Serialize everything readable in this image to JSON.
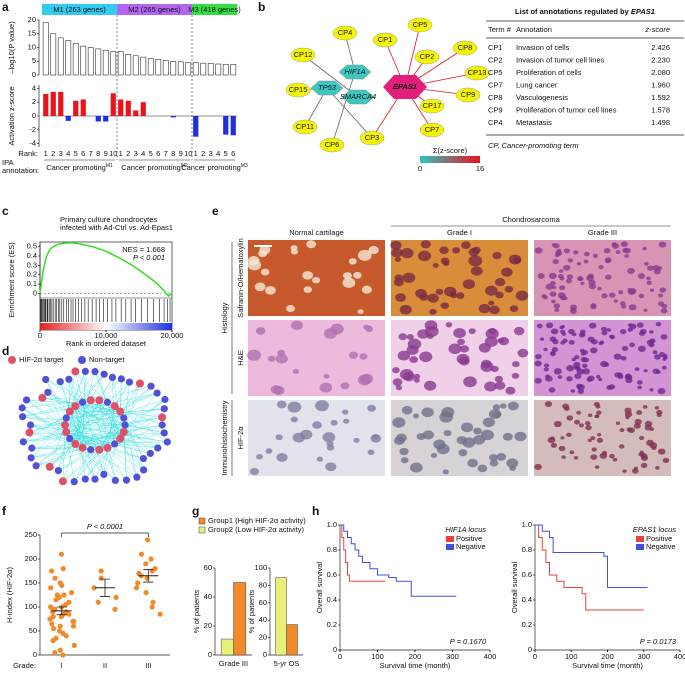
{
  "panel_labels": [
    "a",
    "b",
    "c",
    "d",
    "e",
    "f",
    "g",
    "h"
  ],
  "chart_data": [
    {
      "type": "modulebar",
      "ylabel": "–log10(P value)",
      "ylim": [
        0,
        20
      ],
      "yticks": [
        0,
        5,
        10,
        15,
        20
      ],
      "zlabel": "Activation z-score",
      "zlim": [
        -4.5,
        4.5
      ],
      "zticks": [
        -4,
        -2,
        0,
        2,
        4
      ],
      "z_colors": {
        "positive": "#e8141c",
        "negative": "#1f2ee0"
      },
      "rank_label": "Rank:",
      "annotation_label": [
        "IPA",
        "annotation:"
      ],
      "modules": [
        {
          "name": "M1 (263 genes)",
          "color": "#33ccee",
          "annotation": "Cancer promoting",
          "superscript": "M1",
          "categories": [
            "1",
            "2",
            "3",
            "4",
            "5",
            "6",
            "7",
            "8",
            "9",
            "10"
          ],
          "values": [
            19,
            15,
            13.5,
            12.5,
            11.5,
            10.5,
            10,
            9.5,
            9,
            8.5
          ],
          "z_values": [
            3.2,
            3.5,
            3.5,
            -0.7,
            2.2,
            2.4,
            0,
            -0.8,
            -0.8,
            3.3
          ]
        },
        {
          "name": "M2 (265 genes)",
          "color": "#b266ee",
          "annotation": "Cancer promoting",
          "superscript": "M2",
          "categories": [
            "1",
            "2",
            "3",
            "4",
            "5",
            "6",
            "7",
            "8",
            "9",
            "10"
          ],
          "values": [
            8.5,
            7.5,
            7,
            6.5,
            6,
            5.7,
            5.3,
            5,
            4.8,
            4.5
          ],
          "z_values": [
            2.4,
            2.2,
            0.8,
            2.0,
            0,
            0,
            0,
            -0.2,
            0,
            0
          ]
        },
        {
          "name": "M3 (418 genes)",
          "color": "#33dd44",
          "annotation": "Cancer promoting",
          "superscript": "M3",
          "categories": [
            "1",
            "2",
            "3",
            "4",
            "5",
            "6"
          ],
          "values": [
            4.5,
            4.3,
            4.2,
            4,
            3.9,
            3.8
          ],
          "z_values": [
            -3,
            0,
            0,
            0,
            -2.7,
            -2.8
          ]
        }
      ]
    },
    {
      "type": "gsea",
      "title_lines": [
        "Primary culture chondrocytes",
        "infected with Ad-Ctrl vs. Ad-Epas1"
      ],
      "annotations": [
        "NES = 1.668",
        "P < 0.001"
      ],
      "ylabel": "Enrichment score (ES)",
      "xlabel": "Rank in ordered dataset",
      "color": "#33dd22",
      "xlim": [
        0,
        20000
      ],
      "xticks": [
        0,
        {
          "value": 10000,
          "label": "10,000"
        },
        {
          "value": 20000,
          "label": "20,000"
        }
      ],
      "ylim": [
        -0.05,
        0.55
      ],
      "yticks": [
        0,
        0.1,
        0.2,
        0.3,
        0.4,
        0.5
      ],
      "x": [
        0,
        500,
        1000,
        1500,
        2000,
        3000,
        4000,
        5000,
        6000,
        8000,
        10000,
        12000,
        14000,
        16000,
        17500,
        18500,
        19500,
        20000
      ],
      "values": [
        0,
        0.25,
        0.4,
        0.47,
        0.5,
        0.53,
        0.54,
        0.54,
        0.53,
        0.5,
        0.45,
        0.38,
        0.3,
        0.2,
        0.12,
        0.05,
        -0.03,
        0
      ],
      "hits": [
        50,
        150,
        250,
        400,
        500,
        650,
        800,
        900,
        1100,
        1200,
        1400,
        1600,
        1800,
        2000,
        2300,
        2500,
        2800,
        3000,
        3300,
        3600,
        4000,
        4300,
        4700,
        5000,
        5400,
        5800,
        6300,
        6800,
        7300,
        7900,
        8500,
        9000,
        9600,
        10200,
        10900,
        11500,
        12300,
        13000,
        13800,
        14500,
        15400,
        16300,
        17200,
        18100,
        18800,
        19300,
        19700
      ]
    },
    {
      "type": "dotplot",
      "ylabel": "H-index (HIF-2α)",
      "xlabel": "Grade:",
      "categories": [
        "I",
        "II",
        "III"
      ],
      "annotation": "P < 0.0001",
      "color": "#f08a2a",
      "ylim": [
        0,
        250
      ],
      "yticks": [
        0,
        50,
        100,
        150,
        200,
        250
      ],
      "values": [
        [
          210,
          180,
          175,
          160,
          150,
          145,
          140,
          130,
          125,
          120,
          115,
          110,
          105,
          100,
          100,
          95,
          90,
          90,
          85,
          80,
          80,
          75,
          70,
          70,
          65,
          60,
          60,
          55,
          50,
          45,
          40,
          35,
          30,
          20,
          10,
          5,
          0,
          125,
          95,
          85
        ],
        [
          175,
          160,
          140,
          120,
          110,
          95
        ],
        [
          240,
          210,
          200,
          190,
          180,
          175,
          170,
          165,
          160,
          150,
          140,
          130,
          110,
          100,
          85
        ]
      ],
      "means": [
        92,
        140,
        165
      ],
      "errors": [
        8,
        18,
        13
      ]
    },
    {
      "type": "groupbar",
      "ylabel": "% of patients",
      "categories": [
        "Grade III"
      ],
      "ylim": [
        0,
        60
      ],
      "yticks": [
        0,
        20,
        40,
        60
      ],
      "series": [
        {
          "name": "Group1 (High HIF-2α activity)",
          "color": "#f08a2a",
          "values": [
            50
          ]
        },
        {
          "name": "Group2 (Low HIF-2α activity)",
          "color": "#e8f07a",
          "values": [
            11
          ]
        }
      ]
    },
    {
      "type": "groupbar",
      "ylabel": "% of patients",
      "categories": [
        "5-yr OS"
      ],
      "ylim": [
        0,
        100
      ],
      "yticks": [
        0,
        20,
        40,
        60,
        80,
        100
      ],
      "series": [
        {
          "color": "#f08a2a",
          "values": [
            35
          ]
        },
        {
          "color": "#e8f07a",
          "values": [
            89
          ]
        }
      ]
    },
    {
      "type": "km",
      "title": "HIF1A locus",
      "ylabel": "Overall survival",
      "xlabel": "Survival time (month)",
      "annotation": "P = 0.1670",
      "xlim": [
        0,
        400
      ],
      "xticks": [
        0,
        100,
        200,
        300,
        400
      ],
      "ylim": [
        0,
        1
      ],
      "yticks": [
        0,
        0.2,
        0.4,
        0.6,
        0.8,
        {
          "value": 1,
          "label": "1.0"
        }
      ],
      "series": [
        {
          "name": "Positive",
          "color": "#e84040",
          "x": [
            0,
            5,
            10,
            15,
            20,
            25,
            30,
            120
          ],
          "values": [
            1,
            0.9,
            0.8,
            0.7,
            0.6,
            0.55,
            0.55,
            0.55
          ]
        },
        {
          "name": "Negative",
          "color": "#4050e0",
          "x": [
            0,
            10,
            20,
            30,
            40,
            50,
            60,
            80,
            100,
            130,
            150,
            190,
            310
          ],
          "values": [
            1,
            0.95,
            0.9,
            0.85,
            0.8,
            0.75,
            0.7,
            0.65,
            0.6,
            0.58,
            0.55,
            0.43,
            0.43
          ]
        }
      ]
    },
    {
      "type": "km",
      "title": "EPAS1 locus",
      "ylabel": "Overall survival",
      "xlabel": "Survival time (month)",
      "annotation": "P = 0.0173",
      "xlim": [
        0,
        400
      ],
      "xticks": [
        0,
        100,
        200,
        300,
        400
      ],
      "ylim": [
        0,
        1
      ],
      "yticks": [
        0,
        0.2,
        0.4,
        0.6,
        0.8,
        {
          "value": 1,
          "label": "1.0"
        }
      ],
      "series": [
        {
          "name": "Positive",
          "color": "#e84040",
          "x": [
            0,
            10,
            20,
            30,
            40,
            60,
            80,
            100,
            130,
            140,
            300
          ],
          "values": [
            1,
            0.9,
            0.8,
            0.7,
            0.6,
            0.55,
            0.5,
            0.5,
            0.45,
            0.32,
            0.32
          ]
        },
        {
          "name": "Negative",
          "color": "#4050e0",
          "x": [
            0,
            20,
            40,
            50,
            190,
            200,
            310
          ],
          "values": [
            1,
            0.95,
            0.9,
            0.78,
            0.75,
            0.5,
            0.5
          ]
        }
      ]
    }
  ],
  "network_b": {
    "hub": "EPAS1",
    "regulators": [
      "HIF1A",
      "TP53",
      "SMARCA4"
    ],
    "nodes": [
      "CP4",
      "CP1",
      "CP5",
      "CP2",
      "CP8",
      "CP12",
      "CP13",
      "CP15",
      "CP9",
      "CP17",
      "CP11",
      "CP7",
      "CP6",
      "CP3"
    ],
    "colorbar_label": "Σ(z-score)",
    "colorbar_ticks": [
      0,
      16
    ],
    "colorbar_colors": [
      "#2ec4c4",
      "#e8141c"
    ]
  },
  "table_b": {
    "title": "List of annotations regulated by ",
    "title_gene": "EPAS1",
    "columns": [
      "Term #",
      "Annotation",
      "z-score"
    ],
    "rows": [
      [
        "CP1",
        "Invasion of cells",
        "2.426"
      ],
      [
        "CP2",
        "Invasion of tumor cell lines",
        "2.230"
      ],
      [
        "CP5",
        "Proliferation of cells",
        "2.080"
      ],
      [
        "CP7",
        "Lung cancer",
        "1.960"
      ],
      [
        "CP8",
        "Vasculogenesis",
        "1.592"
      ],
      [
        "CP9",
        "Proliferation of tumor cell lines",
        "1.578"
      ],
      [
        "CP4",
        "Metastasis",
        "1.498"
      ]
    ],
    "footnote": "CP, Cancer-promoting term"
  },
  "network_d": {
    "legend": [
      "HIF-2α target",
      "Non-target"
    ],
    "colors": [
      "#e0506a",
      "#5050d8"
    ]
  },
  "histology_e": {
    "group_title": "Chondrosarcoma",
    "columns": [
      "Normal cartilage",
      "Grade I",
      "Grade III"
    ],
    "rows": [
      "Safranin-O/Hematoxylin",
      "H&E",
      "HIF-2α"
    ],
    "sections": [
      "Histology",
      "Immunohistochemistry"
    ]
  }
}
